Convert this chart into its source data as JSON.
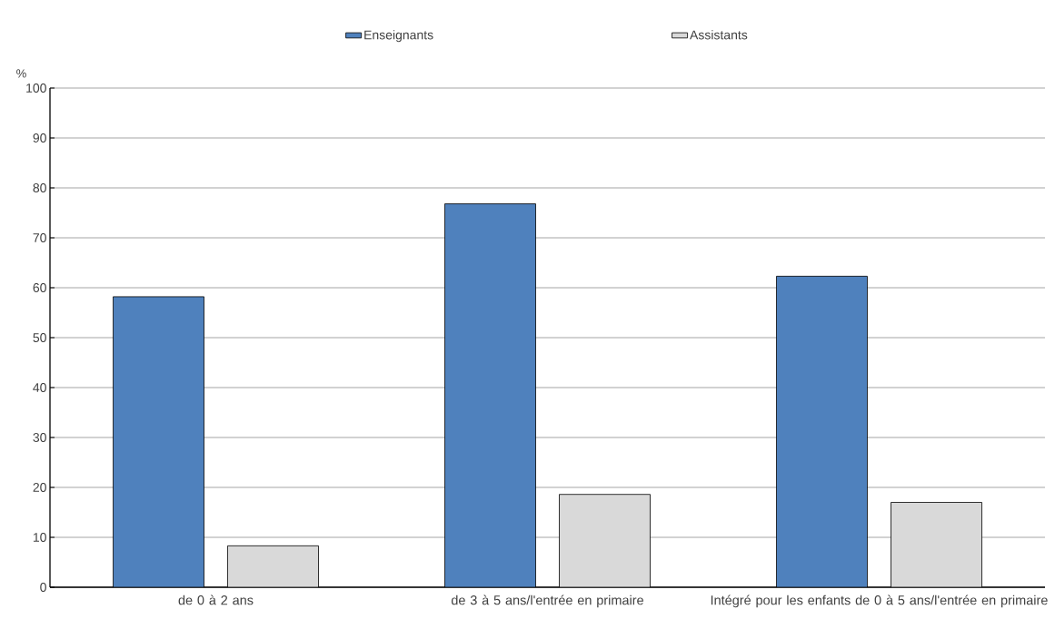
{
  "chart_data": {
    "type": "bar",
    "ylabel": "%",
    "categories": [
      "de 0 à 2 ans",
      "de 3 à 5 ans/l'entrée en primaire",
      "Intégré pour les enfants de 0 à 5 ans/l'entrée en primaire"
    ],
    "series": [
      {
        "name": "Enseignants",
        "color": "#4f81bd",
        "values": [
          58.2,
          76.8,
          62.3
        ]
      },
      {
        "name": "Assistants",
        "color": "#d9d9d9",
        "values": [
          8.3,
          18.6,
          17.0
        ]
      }
    ],
    "ylim": [
      0,
      100
    ],
    "yticks": [
      0,
      10,
      20,
      30,
      40,
      50,
      60,
      70,
      80,
      90,
      100
    ],
    "grid": "y",
    "legend": "top"
  }
}
